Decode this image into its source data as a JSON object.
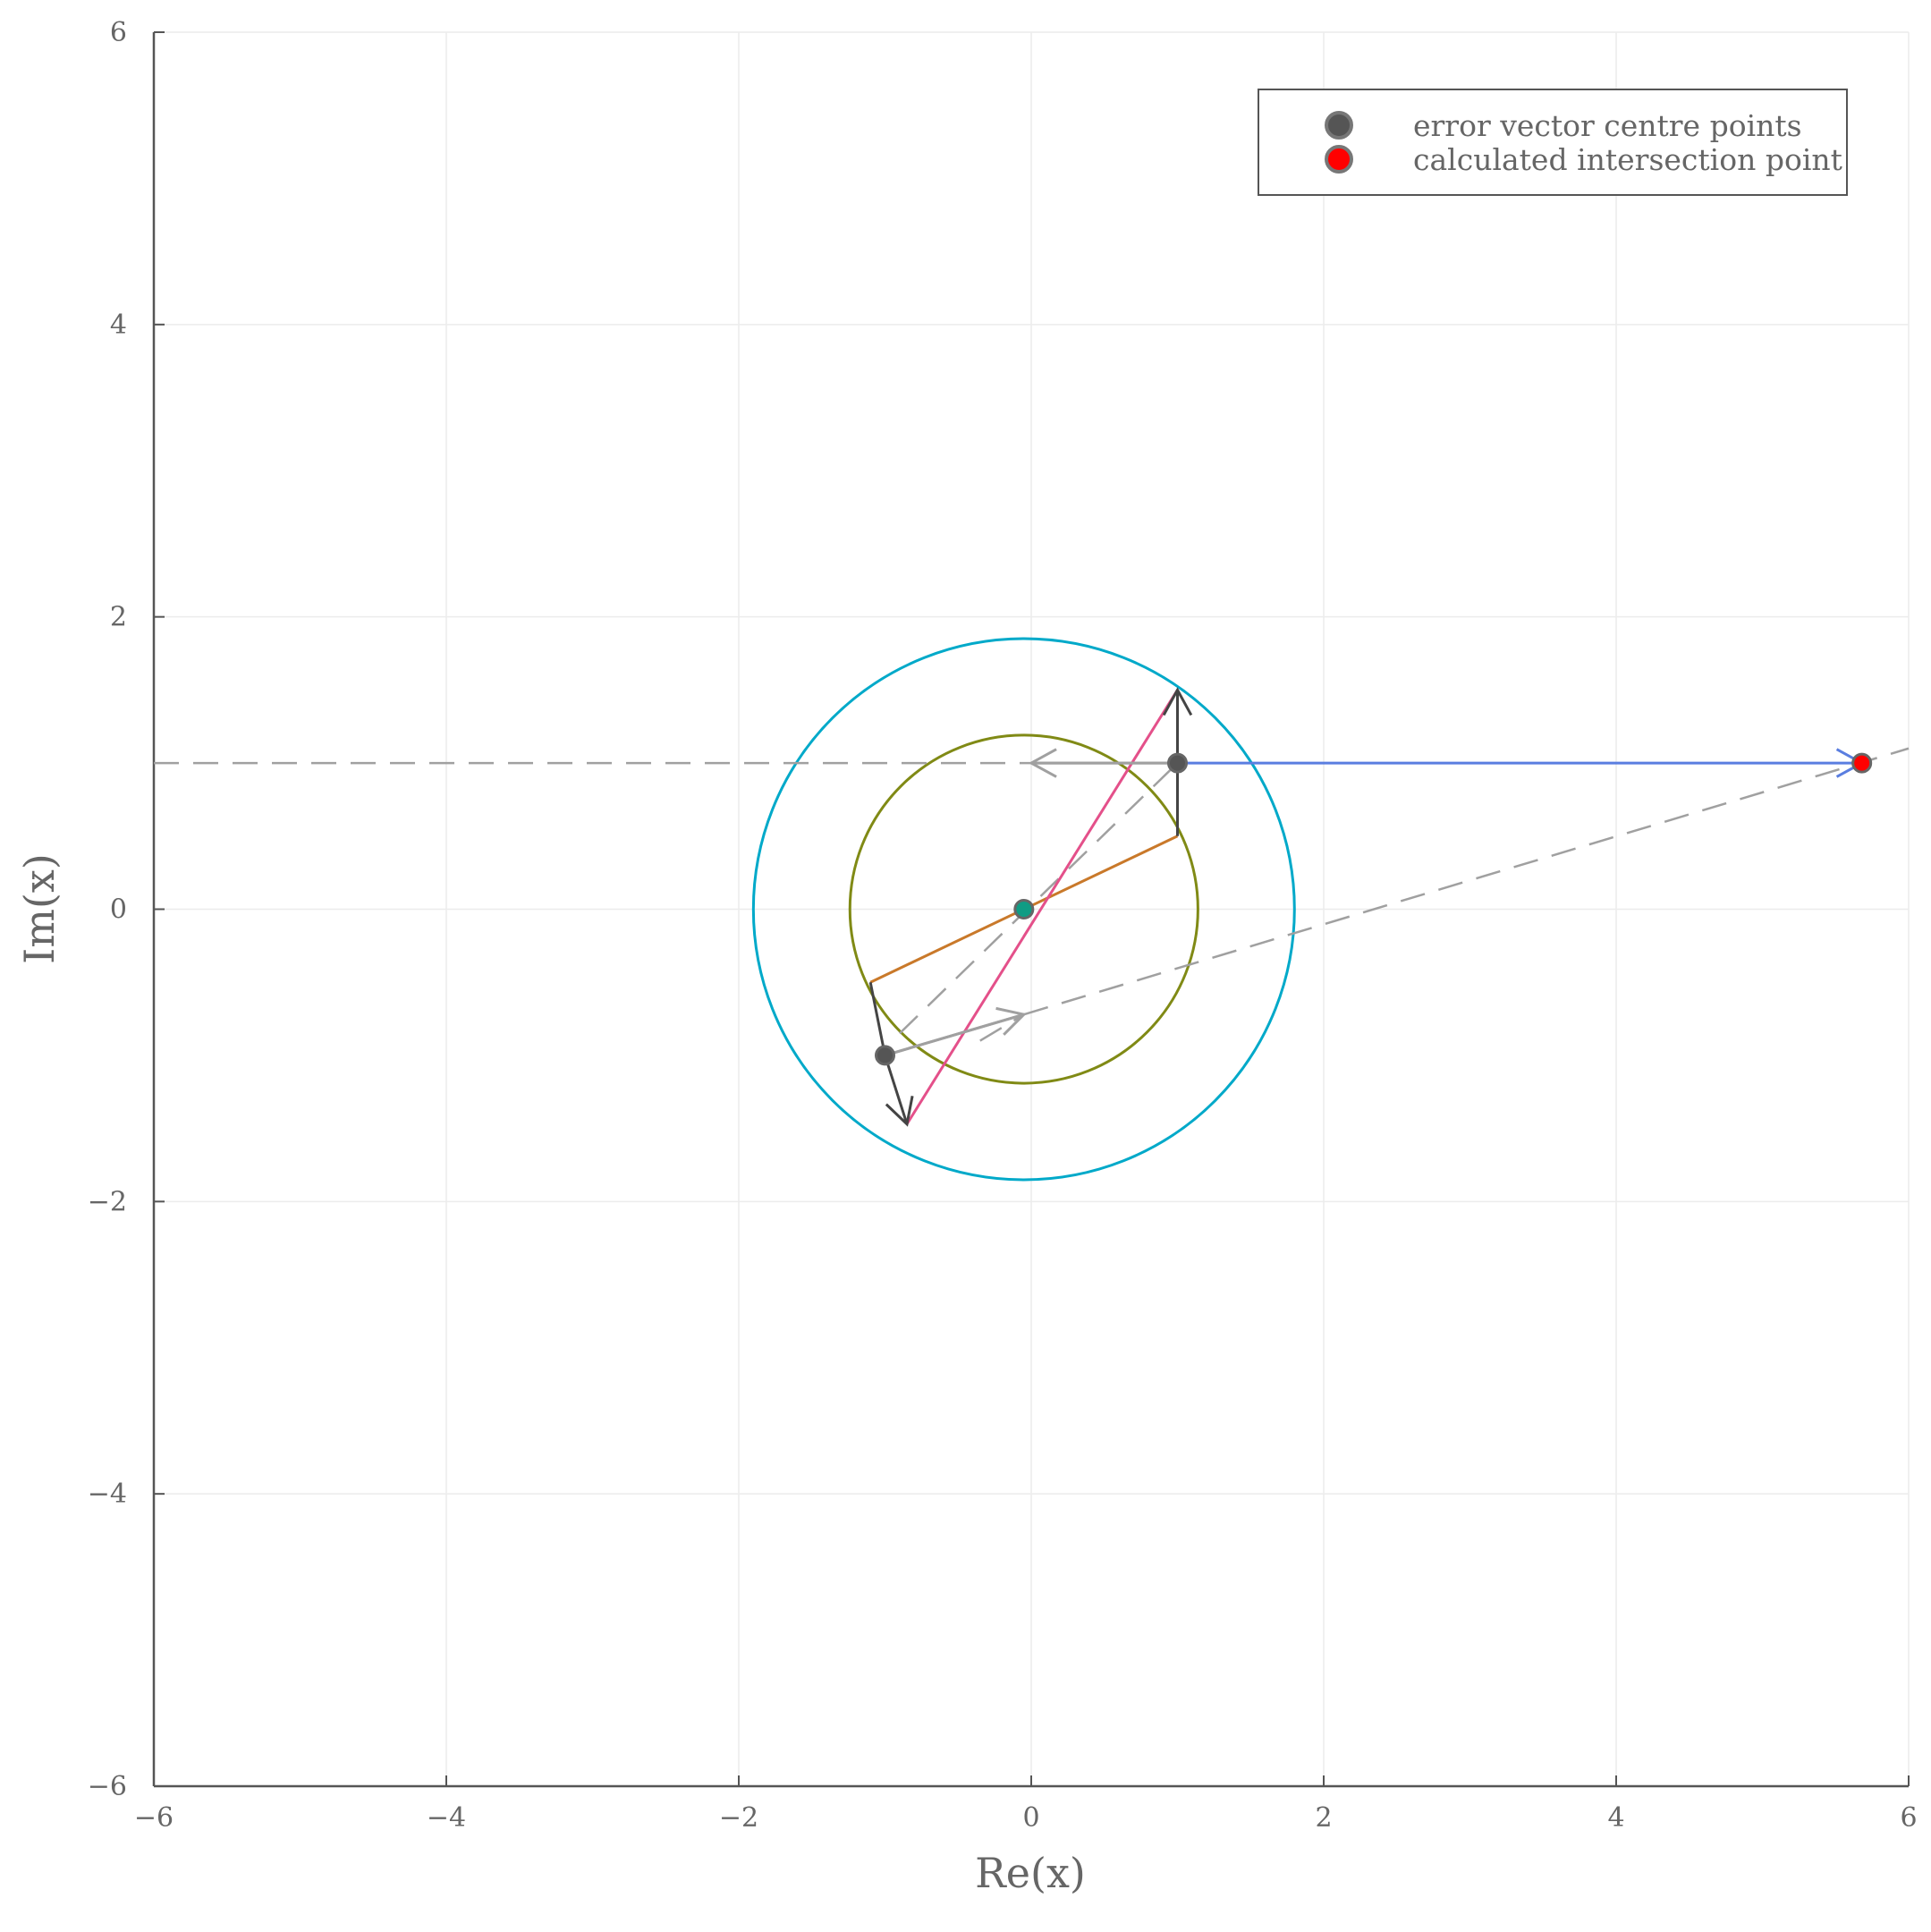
{
  "chart_data": {
    "type": "scatter",
    "title": "",
    "xlabel": "Re(x)",
    "ylabel": "Im(x)",
    "xlim": [
      -6,
      6
    ],
    "ylim": [
      -6,
      6
    ],
    "xticks": [
      -6,
      -4,
      -2,
      0,
      2,
      4,
      6
    ],
    "yticks": [
      -6,
      -4,
      -2,
      0,
      2,
      4,
      6
    ],
    "xtick_labels": [
      "−6",
      "−4",
      "−2",
      "0",
      "2",
      "4",
      "6"
    ],
    "ytick_labels": [
      "−6",
      "−4",
      "−2",
      "0",
      "2",
      "4",
      "6"
    ],
    "grid": true,
    "legend_position": "top-right",
    "legend": [
      {
        "label": "error vector centre points",
        "marker_color": "#555555"
      },
      {
        "label": "calculated intersection point",
        "marker_color": "#ff0000"
      }
    ],
    "colors": {
      "axis": "#555555",
      "grid": "#ececec",
      "dashed": "#a0a0a0",
      "error_vector": "#444444",
      "outer_circle": "#00a9c9",
      "inner_circle": "#808a15",
      "diameter_orange": "#c9792a",
      "diameter_pink": "#e4508a",
      "horizontal_vector": "#5a7ee0",
      "centre_point": "#0f9c84",
      "intersection_point": "#ff0000"
    },
    "circles": [
      {
        "name": "outer",
        "cx": -0.05,
        "cy": 0,
        "r": 1.85
      },
      {
        "name": "inner",
        "cx": -0.05,
        "cy": 0,
        "r": 1.19
      }
    ],
    "solid_segments": [
      {
        "from": [
          -1.1,
          -0.5
        ],
        "to": [
          1.0,
          0.5
        ],
        "color": "diameter_orange"
      },
      {
        "from": [
          -0.85,
          -1.47
        ],
        "to": [
          1.0,
          1.5
        ],
        "color": "diameter_pink"
      },
      {
        "from": [
          1.0,
          0.5
        ],
        "to": [
          1.0,
          1.0
        ],
        "color": "error_vector"
      },
      {
        "from": [
          -1.1,
          -0.5
        ],
        "to": [
          -1.0,
          -1.0
        ],
        "color": "error_vector"
      },
      {
        "from": [
          -1.0,
          -1.0
        ],
        "to": [
          -0.05,
          -0.72
        ],
        "color": "dashed"
      },
      {
        "from": [
          1.0,
          1.0
        ],
        "to": [
          0.0,
          1.0
        ],
        "color": "dashed"
      }
    ],
    "arrows": [
      {
        "from": [
          1.0,
          1.0
        ],
        "to": [
          1.0,
          1.5
        ],
        "color": "error_vector"
      },
      {
        "from": [
          -1.0,
          -1.0
        ],
        "to": [
          -0.85,
          -1.47
        ],
        "color": "error_vector"
      },
      {
        "from": [
          1.0,
          1.0
        ],
        "to": [
          5.68,
          1.0
        ],
        "color": "horizontal_vector"
      },
      {
        "from": [
          -1.0,
          -1.0
        ],
        "to": [
          -0.05,
          -0.72
        ],
        "color": "dashed"
      },
      {
        "from": [
          1.0,
          1.0
        ],
        "to": [
          0.0,
          1.0
        ],
        "color": "dashed"
      }
    ],
    "dashed_lines": [
      {
        "from": [
          -6,
          1.0
        ],
        "to": [
          0.0,
          1.0
        ]
      },
      {
        "from": [
          -0.05,
          -0.72
        ],
        "to": [
          6.0,
          1.1
        ]
      },
      {
        "from": [
          -0.9,
          -0.85
        ],
        "to": [
          1.0,
          1.0
        ]
      },
      {
        "from": [
          -0.35,
          -0.9
        ],
        "to": [
          -0.05,
          -0.72
        ]
      }
    ],
    "series": [
      {
        "points": [
          [
            1.0,
            1.0
          ],
          [
            -1.0,
            -1.0
          ]
        ],
        "color": "#555555"
      },
      {
        "points": [
          [
            5.68,
            1.0
          ]
        ],
        "color": "#ff0000"
      },
      {
        "points": [
          [
            -0.05,
            0.0
          ]
        ],
        "color": "#0f9c84"
      }
    ]
  }
}
